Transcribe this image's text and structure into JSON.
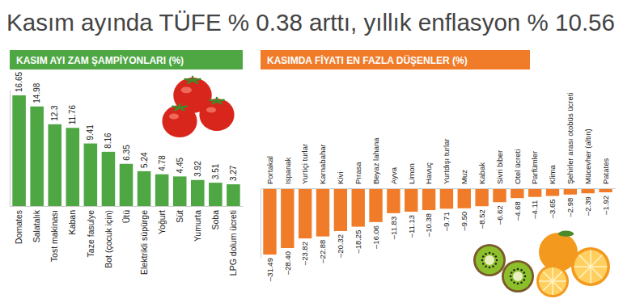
{
  "title": "Kasım ayında TÜFE % 0.38 arttı, yıllık enflasyon % 10.56",
  "chart_data": [
    {
      "type": "bar",
      "title": "KASIM AYI ZAM ŞAMPİYONLARI (%)",
      "categories": [
        "Domates",
        "Salatalık",
        "Tost makinası",
        "Kaban",
        "Taze fasulye",
        "Bot (çocuk için)",
        "Ütü",
        "Elektrikli süpürge",
        "Yoğurt",
        "Süt",
        "Yumurta",
        "Soba",
        "LPG dolum ücreti"
      ],
      "values": [
        16.65,
        14.98,
        12.3,
        11.76,
        9.41,
        8.16,
        6.35,
        5.24,
        4.78,
        4.45,
        3.92,
        3.51,
        3.27
      ],
      "color": "#4fa744",
      "ylim": [
        0,
        17.5
      ],
      "yticks": [],
      "grid": false,
      "data_labels": true,
      "tick_labels": "x"
    },
    {
      "type": "bar",
      "title": "KASIMDA FİYATI EN FAZLA DÜŞENLER (%)",
      "categories": [
        "Portakal",
        "Ispanak",
        "Yurtiçi turlar",
        "Karnabahar",
        "Kivi",
        "Pırasa",
        "Beyaz lahana",
        "Ayva",
        "Limon",
        "Havuç",
        "Yurtdışı turlar",
        "Muz",
        "Kabak",
        "Sivri biber",
        "Otel ücreti",
        "Parfümler",
        "Klima",
        "Şehirler arası otobüs ücreti",
        "Mücevher (altın)",
        "Patates"
      ],
      "values": [
        -31.49,
        -28.4,
        -23.82,
        -22.88,
        -20.32,
        -18.25,
        -16.06,
        -11.83,
        -11.13,
        -10.38,
        -9.71,
        -9.5,
        -8.52,
        -6.62,
        -4.68,
        -4.11,
        -3.65,
        -2.98,
        -2.39,
        -1.92
      ],
      "value_labels": [
        "–31.49",
        "–28.40",
        "–23.82",
        "–22.88",
        "–20.32",
        "–18.25",
        "–16.06",
        "–11.83",
        "–11.13",
        "–10.38",
        "–9.71",
        "–9.50",
        "–8.52",
        "–6.62",
        "–4.68",
        "–4.11",
        "–3.65",
        "–2.98",
        "–2.39",
        "–1.92"
      ],
      "color": "#f07c2a",
      "ylim": [
        -33,
        0
      ],
      "yticks": [],
      "grid": false,
      "data_labels": true,
      "tick_labels": "x"
    }
  ]
}
